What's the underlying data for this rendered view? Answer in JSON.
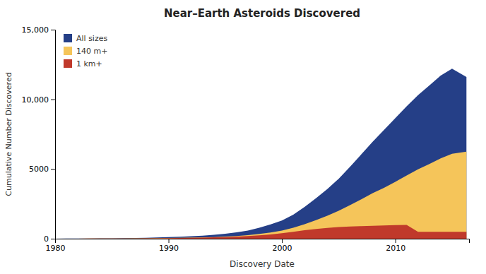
{
  "chart_data": {
    "type": "area",
    "title": "Near–Earth Asteroids Discovered",
    "x_label": "Discovery Date",
    "y_label": "Cumulative Number Discovered",
    "x": [
      1980,
      1981,
      1982,
      1983,
      1984,
      1985,
      1986,
      1987,
      1988,
      1989,
      1990,
      1991,
      1992,
      1993,
      1994,
      1995,
      1996,
      1997,
      1998,
      1999,
      2000,
      2001,
      2002,
      2003,
      2004,
      2005,
      2006,
      2007,
      2008,
      2009,
      2010,
      2011,
      2012,
      2013,
      2014,
      2015,
      2016.27
    ],
    "series": [
      {
        "name": "All sizes",
        "color": "#253f87",
        "values": [
          5,
          8,
          12,
          16,
          22,
          30,
          40,
          52,
          68,
          88,
          110,
          138,
          175,
          220,
          275,
          350,
          450,
          580,
          790,
          1020,
          1300,
          1720,
          2280,
          2900,
          3560,
          4300,
          5150,
          6050,
          6950,
          7800,
          8650,
          9500,
          10300,
          11000,
          11700,
          12200,
          11600
        ]
      },
      {
        "name": "140 m+",
        "color": "#f5c55a",
        "values": [
          2,
          3,
          5,
          7,
          9,
          13,
          17,
          22,
          29,
          37,
          47,
          59,
          75,
          94,
          118,
          150,
          195,
          252,
          345,
          445,
          585,
          785,
          1045,
          1325,
          1645,
          2005,
          2405,
          2825,
          3265,
          3655,
          4085,
          4535,
          4985,
          5355,
          5760,
          6100,
          6250
        ]
      },
      {
        "name": "1 km+",
        "color": "#c0392b",
        "values": [
          2,
          3,
          5,
          7,
          9,
          11,
          15,
          19,
          24,
          30,
          38,
          48,
          62,
          78,
          98,
          120,
          150,
          188,
          245,
          308,
          388,
          490,
          612,
          702,
          772,
          832,
          872,
          902,
          930,
          952,
          972,
          988,
          500,
          500,
          500,
          500,
          500
        ]
      }
    ],
    "xlim": [
      1980,
      2016.5
    ],
    "xticks": [
      1980,
      1990,
      2000,
      2010
    ],
    "ylim": [
      0,
      15000
    ],
    "yticks": [
      0,
      5000,
      {
        "value": 10000,
        "label": "10,000"
      },
      {
        "value": 15000,
        "label": "15,000"
      }
    ],
    "stacked": false,
    "grid": false,
    "legend": "upper left"
  }
}
